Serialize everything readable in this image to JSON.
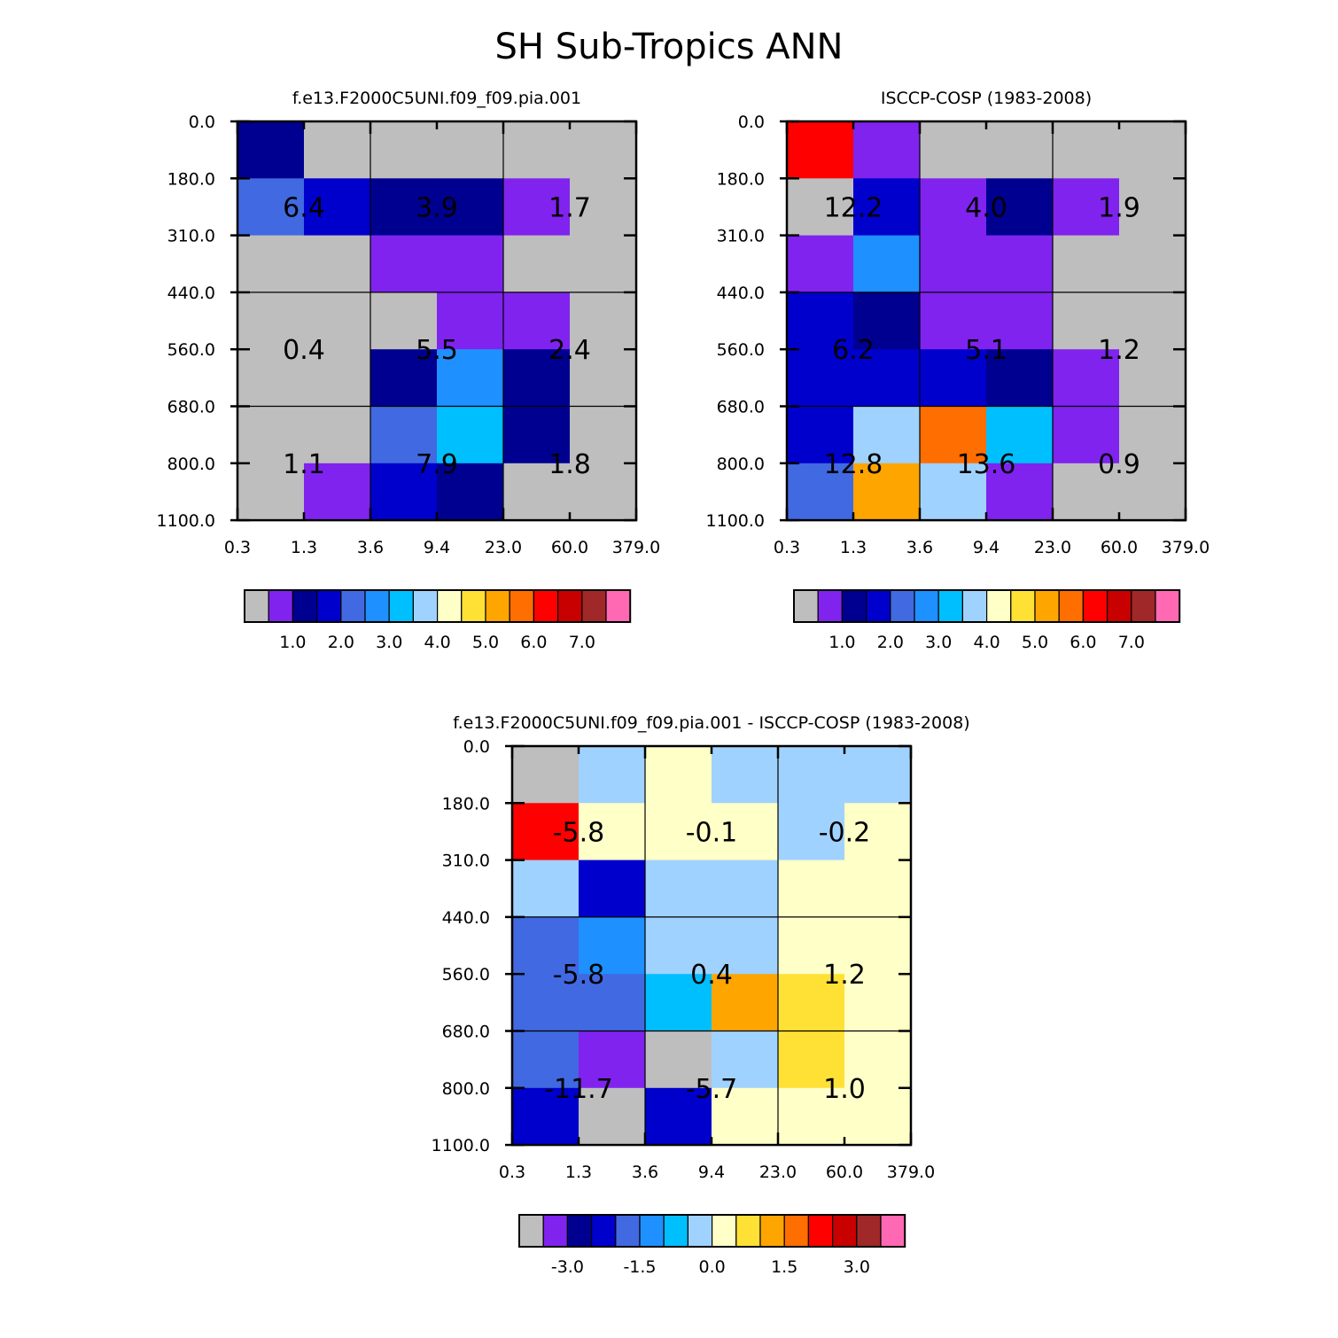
{
  "title": "SH Sub-Tropics ANN",
  "chart_data": [
    {
      "type": "heatmap",
      "title": "f.e13.F2000C5UNI.f09_f09.pia.001",
      "xticks": [
        "0.3",
        "1.3",
        "3.6",
        "9.4",
        "23.0",
        "60.0",
        "379.0"
      ],
      "yticks": [
        "0.0",
        "180.0",
        "310.0",
        "440.0",
        "560.0",
        "680.0",
        "800.0",
        "1100.0"
      ],
      "colorbar": {
        "colors": [
          "#bebebe",
          "#8023ef",
          "#000090",
          "#0000cd",
          "#4169e1",
          "#1e90ff",
          "#00bfff",
          "#a0d2ff",
          "#ffffc8",
          "#ffe135",
          "#ffa500",
          "#ff6e00",
          "#ff0000",
          "#c80000",
          "#a02828",
          "#ff69b4"
        ],
        "labels": [
          "1.0",
          "2.0",
          "3.0",
          "4.0",
          "5.0",
          "6.0",
          "7.0"
        ]
      },
      "grid_levels": [
        [
          "#000090",
          "#bebebe",
          "#bebebe",
          "#bebebe",
          "#bebebe",
          "#bebebe"
        ],
        [
          "#4169e1",
          "#0000cd",
          "#000090",
          "#000090",
          "#8023ef",
          "#bebebe"
        ],
        [
          "#bebebe",
          "#bebebe",
          "#8023ef",
          "#8023ef",
          "#bebebe",
          "#bebebe"
        ],
        [
          "#bebebe",
          "#bebebe",
          "#bebebe",
          "#8023ef",
          "#8023ef",
          "#bebebe"
        ],
        [
          "#bebebe",
          "#bebebe",
          "#000090",
          "#1e90ff",
          "#000090",
          "#bebebe"
        ],
        [
          "#bebebe",
          "#bebebe",
          "#4169e1",
          "#00bfff",
          "#000090",
          "#bebebe"
        ],
        [
          "#bebebe",
          "#8023ef",
          "#0000cd",
          "#000090",
          "#bebebe",
          "#bebebe"
        ]
      ],
      "block_values": [
        [
          "6.4",
          "3.9",
          "1.7"
        ],
        [
          "0.4",
          "5.5",
          "2.4"
        ],
        [
          "1.1",
          "7.9",
          "1.8"
        ]
      ]
    },
    {
      "type": "heatmap",
      "title": "ISCCP-COSP (1983-2008)",
      "xticks": [
        "0.3",
        "1.3",
        "3.6",
        "9.4",
        "23.0",
        "60.0",
        "379.0"
      ],
      "yticks": [
        "0.0",
        "180.0",
        "310.0",
        "440.0",
        "560.0",
        "680.0",
        "800.0",
        "1100.0"
      ],
      "colorbar": {
        "colors": [
          "#bebebe",
          "#8023ef",
          "#000090",
          "#0000cd",
          "#4169e1",
          "#1e90ff",
          "#00bfff",
          "#a0d2ff",
          "#ffffc8",
          "#ffe135",
          "#ffa500",
          "#ff6e00",
          "#ff0000",
          "#c80000",
          "#a02828",
          "#ff69b4"
        ],
        "labels": [
          "1.0",
          "2.0",
          "3.0",
          "4.0",
          "5.0",
          "6.0",
          "7.0"
        ]
      },
      "grid_levels": [
        [
          "#ff0000",
          "#8023ef",
          "#bebebe",
          "#bebebe",
          "#bebebe",
          "#bebebe"
        ],
        [
          "#bebebe",
          "#0000cd",
          "#8023ef",
          "#000090",
          "#8023ef",
          "#bebebe"
        ],
        [
          "#8023ef",
          "#1e90ff",
          "#8023ef",
          "#8023ef",
          "#bebebe",
          "#bebebe"
        ],
        [
          "#0000cd",
          "#000090",
          "#8023ef",
          "#8023ef",
          "#bebebe",
          "#bebebe"
        ],
        [
          "#0000cd",
          "#0000cd",
          "#0000cd",
          "#000090",
          "#8023ef",
          "#bebebe"
        ],
        [
          "#0000cd",
          "#a0d2ff",
          "#ff6e00",
          "#00bfff",
          "#8023ef",
          "#bebebe"
        ],
        [
          "#4169e1",
          "#ffa500",
          "#a0d2ff",
          "#8023ef",
          "#bebebe",
          "#bebebe"
        ]
      ],
      "block_values": [
        [
          "12.2",
          "4.0",
          "1.9"
        ],
        [
          "6.2",
          "5.1",
          "1.2"
        ],
        [
          "12.8",
          "13.6",
          "0.9"
        ]
      ]
    },
    {
      "type": "heatmap",
      "title": "f.e13.F2000C5UNI.f09_f09.pia.001 - ISCCP-COSP (1983-2008)",
      "xticks": [
        "0.3",
        "1.3",
        "3.6",
        "9.4",
        "23.0",
        "60.0",
        "379.0"
      ],
      "yticks": [
        "0.0",
        "180.0",
        "310.0",
        "440.0",
        "560.0",
        "680.0",
        "800.0",
        "1100.0"
      ],
      "colorbar": {
        "colors": [
          "#bebebe",
          "#8023ef",
          "#000090",
          "#0000cd",
          "#4169e1",
          "#1e90ff",
          "#00bfff",
          "#a0d2ff",
          "#ffffc8",
          "#ffe135",
          "#ffa500",
          "#ff6e00",
          "#ff0000",
          "#c80000",
          "#a02828",
          "#ff69b4"
        ],
        "labels": [
          "-3.0",
          "-1.5",
          "0.0",
          "1.5",
          "3.0"
        ]
      },
      "grid_levels": [
        [
          "#bebebe",
          "#a0d2ff",
          "#ffffc8",
          "#a0d2ff",
          "#a0d2ff",
          "#a0d2ff"
        ],
        [
          "#ff0000",
          "#ffffc8",
          "#ffffc8",
          "#ffffc8",
          "#a0d2ff",
          "#ffffc8"
        ],
        [
          "#a0d2ff",
          "#0000cd",
          "#a0d2ff",
          "#a0d2ff",
          "#ffffc8",
          "#ffffc8"
        ],
        [
          "#4169e1",
          "#1e90ff",
          "#a0d2ff",
          "#a0d2ff",
          "#ffffc8",
          "#ffffc8"
        ],
        [
          "#4169e1",
          "#4169e1",
          "#00bfff",
          "#ffa500",
          "#ffe135",
          "#ffffc8"
        ],
        [
          "#4169e1",
          "#8023ef",
          "#bebebe",
          "#a0d2ff",
          "#ffe135",
          "#ffffc8"
        ],
        [
          "#0000cd",
          "#bebebe",
          "#0000cd",
          "#ffffc8",
          "#ffffc8",
          "#ffffc8"
        ]
      ],
      "block_values": [
        [
          "-5.8",
          "-0.1",
          "-0.2"
        ],
        [
          "-5.8",
          "0.4",
          "1.2"
        ],
        [
          "-11.7",
          "-5.7",
          "1.0"
        ]
      ]
    }
  ]
}
